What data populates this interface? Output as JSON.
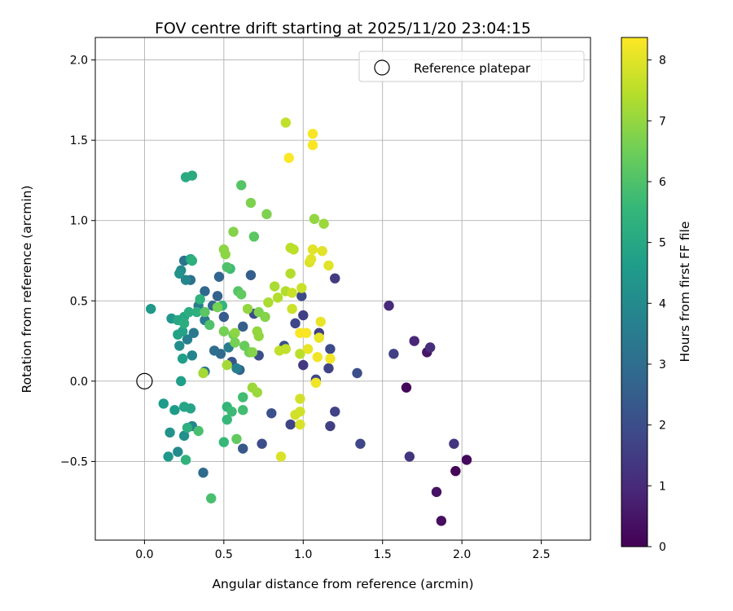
{
  "chart_data": {
    "type": "scatter",
    "title": "FOV centre drift starting at 2025/11/20 23:04:15",
    "xlabel": "Angular distance from reference (arcmin)",
    "ylabel": "Rotation from reference (arcmin)",
    "xlim": [
      -0.31,
      2.81
    ],
    "ylim": [
      -0.99,
      2.14
    ],
    "xticks": [
      0.0,
      0.5,
      1.0,
      1.5,
      2.0,
      2.5
    ],
    "xtick_labels": [
      "0.0",
      "0.5",
      "1.0",
      "1.5",
      "2.0",
      "2.5"
    ],
    "yticks": [
      -0.5,
      0.0,
      0.5,
      1.0,
      1.5,
      2.0
    ],
    "ytick_labels": [
      "−0.5",
      "0.0",
      "0.5",
      "1.0",
      "1.5",
      "2.0"
    ],
    "grid": true,
    "legend": {
      "position": "top-right",
      "entries": [
        "Reference platepar"
      ]
    },
    "reference_point": {
      "x": 0.0,
      "y": 0.0,
      "label": "Reference platepar"
    },
    "colorbar": {
      "label": "Hours from first FF file",
      "min": 0,
      "max": 8.37,
      "colormap": "viridis",
      "ticks": [
        0,
        1,
        2,
        3,
        4,
        5,
        6,
        7,
        8
      ],
      "tick_labels": [
        "0",
        "1",
        "2",
        "3",
        "4",
        "5",
        "6",
        "7",
        "8"
      ]
    },
    "colormap_stops": [
      "#440154",
      "#482878",
      "#3e4989",
      "#31688e",
      "#26828e",
      "#1f9e89",
      "#35b779",
      "#6ece58",
      "#b5de2b",
      "#fde725"
    ],
    "points": [
      {
        "x": 1.96,
        "y": -0.56,
        "h": 0.1
      },
      {
        "x": 2.03,
        "y": -0.49,
        "h": 0.2
      },
      {
        "x": 1.87,
        "y": -0.87,
        "h": 0.3
      },
      {
        "x": 1.84,
        "y": -0.69,
        "h": 0.4
      },
      {
        "x": 1.65,
        "y": -0.04,
        "h": 0.1
      },
      {
        "x": 1.78,
        "y": 0.18,
        "h": 0.5
      },
      {
        "x": 1.7,
        "y": 0.25,
        "h": 0.9
      },
      {
        "x": 1.8,
        "y": 0.21,
        "h": 1.1
      },
      {
        "x": 1.54,
        "y": 0.47,
        "h": 1.0
      },
      {
        "x": 1.95,
        "y": -0.39,
        "h": 1.3
      },
      {
        "x": 1.67,
        "y": -0.47,
        "h": 1.3
      },
      {
        "x": 1.57,
        "y": 0.17,
        "h": 1.6
      },
      {
        "x": 1.36,
        "y": -0.39,
        "h": 1.8
      },
      {
        "x": 1.34,
        "y": 0.05,
        "h": 2.0
      },
      {
        "x": 1.2,
        "y": 0.64,
        "h": 1.5
      },
      {
        "x": 1.2,
        "y": -0.19,
        "h": 1.7
      },
      {
        "x": 1.17,
        "y": -0.28,
        "h": 1.6
      },
      {
        "x": 1.17,
        "y": 0.2,
        "h": 1.9
      },
      {
        "x": 1.16,
        "y": 0.08,
        "h": 1.7
      },
      {
        "x": 1.1,
        "y": 0.3,
        "h": 1.6
      },
      {
        "x": 1.08,
        "y": 0.01,
        "h": 1.8
      },
      {
        "x": 1.0,
        "y": 0.41,
        "h": 1.6
      },
      {
        "x": 1.0,
        "y": 0.1,
        "h": 1.4
      },
      {
        "x": 0.99,
        "y": 0.53,
        "h": 1.9
      },
      {
        "x": 0.95,
        "y": 0.36,
        "h": 1.8
      },
      {
        "x": 0.92,
        "y": -0.27,
        "h": 1.7
      },
      {
        "x": 0.88,
        "y": 0.22,
        "h": 2.1
      },
      {
        "x": 0.8,
        "y": -0.2,
        "h": 2.1
      },
      {
        "x": 0.74,
        "y": -0.39,
        "h": 2.0
      },
      {
        "x": 0.72,
        "y": 0.16,
        "h": 2.0
      },
      {
        "x": 0.69,
        "y": 0.42,
        "h": 1.9
      },
      {
        "x": 0.67,
        "y": 0.66,
        "h": 2.5
      },
      {
        "x": 0.62,
        "y": 0.34,
        "h": 2.5
      },
      {
        "x": 0.62,
        "y": -0.42,
        "h": 2.3
      },
      {
        "x": 0.6,
        "y": 0.07,
        "h": 2.6
      },
      {
        "x": 0.55,
        "y": 0.12,
        "h": 2.2
      },
      {
        "x": 0.5,
        "y": 0.4,
        "h": 2.4
      },
      {
        "x": 0.47,
        "y": 0.65,
        "h": 2.7
      },
      {
        "x": 0.46,
        "y": 0.53,
        "h": 2.6
      },
      {
        "x": 0.43,
        "y": 0.47,
        "h": 2.8
      },
      {
        "x": 0.48,
        "y": 0.17,
        "h": 2.9
      },
      {
        "x": 0.44,
        "y": 0.19,
        "h": 3.0
      },
      {
        "x": 0.38,
        "y": 0.56,
        "h": 2.8
      },
      {
        "x": 0.37,
        "y": -0.57,
        "h": 2.9
      },
      {
        "x": 0.38,
        "y": 0.06,
        "h": 3.2
      },
      {
        "x": 0.29,
        "y": 0.63,
        "h": 3.1
      },
      {
        "x": 0.25,
        "y": 0.75,
        "h": 3.2
      },
      {
        "x": 0.31,
        "y": 0.3,
        "h": 3.4
      },
      {
        "x": 0.27,
        "y": 0.26,
        "h": 3.6
      },
      {
        "x": 0.38,
        "y": 0.38,
        "h": 3.4
      },
      {
        "x": 0.34,
        "y": 0.47,
        "h": 3.5
      },
      {
        "x": 0.53,
        "y": 0.21,
        "h": 3.5
      },
      {
        "x": 0.58,
        "y": 0.08,
        "h": 3.7
      },
      {
        "x": 0.3,
        "y": 0.16,
        "h": 3.8
      },
      {
        "x": 0.3,
        "y": -0.28,
        "h": 3.8
      },
      {
        "x": 0.26,
        "y": 0.63,
        "h": 3.9
      },
      {
        "x": 0.21,
        "y": -0.44,
        "h": 4.0
      },
      {
        "x": 0.23,
        "y": 0.69,
        "h": 4.0
      },
      {
        "x": 0.22,
        "y": 0.22,
        "h": 4.1
      },
      {
        "x": 0.25,
        "y": -0.34,
        "h": 4.2
      },
      {
        "x": 0.16,
        "y": -0.32,
        "h": 4.3
      },
      {
        "x": 0.22,
        "y": 0.67,
        "h": 4.3
      },
      {
        "x": 0.17,
        "y": 0.39,
        "h": 4.4
      },
      {
        "x": 0.04,
        "y": 0.45,
        "h": 4.5
      },
      {
        "x": 0.15,
        "y": -0.47,
        "h": 4.5
      },
      {
        "x": 0.12,
        "y": -0.14,
        "h": 4.6
      },
      {
        "x": 0.19,
        "y": -0.18,
        "h": 4.6
      },
      {
        "x": 0.23,
        "y": 0.0,
        "h": 4.7
      },
      {
        "x": 0.24,
        "y": 0.14,
        "h": 4.7
      },
      {
        "x": 0.21,
        "y": 0.29,
        "h": 4.8
      },
      {
        "x": 0.24,
        "y": 0.31,
        "h": 4.8
      },
      {
        "x": 0.29,
        "y": -0.17,
        "h": 4.9
      },
      {
        "x": 0.25,
        "y": -0.16,
        "h": 4.9
      },
      {
        "x": 0.29,
        "y": 0.76,
        "h": 4.9
      },
      {
        "x": 0.21,
        "y": 0.38,
        "h": 5.0
      },
      {
        "x": 0.25,
        "y": 0.4,
        "h": 5.0
      },
      {
        "x": 0.26,
        "y": 1.27,
        "h": 5.1
      },
      {
        "x": 0.3,
        "y": 1.28,
        "h": 5.1
      },
      {
        "x": 0.28,
        "y": 0.43,
        "h": 5.2
      },
      {
        "x": 0.25,
        "y": 0.36,
        "h": 5.2
      },
      {
        "x": 0.3,
        "y": 0.75,
        "h": 5.3
      },
      {
        "x": 0.33,
        "y": 0.43,
        "h": 5.3
      },
      {
        "x": 0.27,
        "y": -0.29,
        "h": 5.3
      },
      {
        "x": 0.26,
        "y": -0.49,
        "h": 5.4
      },
      {
        "x": 0.35,
        "y": 0.51,
        "h": 5.4
      },
      {
        "x": 0.49,
        "y": 0.47,
        "h": 5.5
      },
      {
        "x": 0.52,
        "y": -0.16,
        "h": 5.5
      },
      {
        "x": 0.52,
        "y": -0.24,
        "h": 5.6
      },
      {
        "x": 0.5,
        "y": -0.38,
        "h": 5.6
      },
      {
        "x": 0.54,
        "y": 0.7,
        "h": 5.7
      },
      {
        "x": 0.55,
        "y": -0.19,
        "h": 5.7
      },
      {
        "x": 0.62,
        "y": -0.1,
        "h": 5.8
      },
      {
        "x": 0.62,
        "y": -0.18,
        "h": 5.8
      },
      {
        "x": 0.34,
        "y": -0.31,
        "h": 5.9
      },
      {
        "x": 0.42,
        "y": -0.73,
        "h": 5.9
      },
      {
        "x": 0.41,
        "y": 0.35,
        "h": 6.0
      },
      {
        "x": 0.52,
        "y": 0.71,
        "h": 6.0
      },
      {
        "x": 0.59,
        "y": 0.56,
        "h": 6.1
      },
      {
        "x": 0.61,
        "y": 1.22,
        "h": 6.1
      },
      {
        "x": 0.69,
        "y": 0.9,
        "h": 6.2
      },
      {
        "x": 0.38,
        "y": 0.43,
        "h": 6.2
      },
      {
        "x": 0.58,
        "y": -0.36,
        "h": 6.3
      },
      {
        "x": 0.61,
        "y": 0.54,
        "h": 6.3
      },
      {
        "x": 0.63,
        "y": 0.22,
        "h": 6.4
      },
      {
        "x": 0.66,
        "y": 0.18,
        "h": 6.5
      },
      {
        "x": 0.56,
        "y": 0.29,
        "h": 6.5
      },
      {
        "x": 0.57,
        "y": 0.24,
        "h": 6.6
      },
      {
        "x": 0.46,
        "y": 0.46,
        "h": 6.6
      },
      {
        "x": 0.5,
        "y": 0.31,
        "h": 6.6
      },
      {
        "x": 0.67,
        "y": 1.11,
        "h": 6.7
      },
      {
        "x": 0.77,
        "y": 1.04,
        "h": 6.7
      },
      {
        "x": 0.72,
        "y": 0.43,
        "h": 6.7
      },
      {
        "x": 0.76,
        "y": 0.4,
        "h": 6.8
      },
      {
        "x": 0.68,
        "y": 0.18,
        "h": 6.8
      },
      {
        "x": 0.56,
        "y": 0.93,
        "h": 6.8
      },
      {
        "x": 0.5,
        "y": 0.82,
        "h": 6.9
      },
      {
        "x": 0.51,
        "y": 0.79,
        "h": 6.9
      },
      {
        "x": 0.57,
        "y": 0.3,
        "h": 6.9
      },
      {
        "x": 0.65,
        "y": 0.45,
        "h": 7.0
      },
      {
        "x": 0.71,
        "y": 0.31,
        "h": 7.0
      },
      {
        "x": 0.72,
        "y": 0.28,
        "h": 7.0
      },
      {
        "x": 0.68,
        "y": -0.04,
        "h": 7.1
      },
      {
        "x": 0.71,
        "y": -0.07,
        "h": 7.1
      },
      {
        "x": 0.52,
        "y": 0.1,
        "h": 7.2
      },
      {
        "x": 0.37,
        "y": 0.05,
        "h": 7.2
      },
      {
        "x": 1.07,
        "y": 1.01,
        "h": 7.0
      },
      {
        "x": 1.13,
        "y": 0.98,
        "h": 7.1
      },
      {
        "x": 0.78,
        "y": 0.49,
        "h": 7.3
      },
      {
        "x": 0.82,
        "y": 0.59,
        "h": 7.3
      },
      {
        "x": 0.84,
        "y": 0.52,
        "h": 7.4
      },
      {
        "x": 0.89,
        "y": 0.56,
        "h": 7.4
      },
      {
        "x": 0.92,
        "y": 0.67,
        "h": 7.4
      },
      {
        "x": 0.92,
        "y": 0.83,
        "h": 7.5
      },
      {
        "x": 0.94,
        "y": 0.82,
        "h": 7.5
      },
      {
        "x": 0.98,
        "y": 0.17,
        "h": 7.5
      },
      {
        "x": 0.85,
        "y": 0.19,
        "h": 7.6
      },
      {
        "x": 0.89,
        "y": 0.2,
        "h": 7.6
      },
      {
        "x": 0.89,
        "y": 1.61,
        "h": 7.6
      },
      {
        "x": 0.93,
        "y": 0.55,
        "h": 7.7
      },
      {
        "x": 0.93,
        "y": 0.45,
        "h": 7.7
      },
      {
        "x": 0.99,
        "y": 0.58,
        "h": 7.7
      },
      {
        "x": 0.98,
        "y": -0.11,
        "h": 7.8
      },
      {
        "x": 0.98,
        "y": -0.19,
        "h": 7.8
      },
      {
        "x": 0.95,
        "y": -0.21,
        "h": 7.8
      },
      {
        "x": 0.98,
        "y": -0.27,
        "h": 7.9
      },
      {
        "x": 0.86,
        "y": -0.47,
        "h": 7.9
      },
      {
        "x": 1.04,
        "y": 0.74,
        "h": 7.9
      },
      {
        "x": 1.05,
        "y": 0.76,
        "h": 8.0
      },
      {
        "x": 1.06,
        "y": 0.82,
        "h": 8.0
      },
      {
        "x": 1.12,
        "y": 0.81,
        "h": 8.0
      },
      {
        "x": 1.16,
        "y": 0.72,
        "h": 8.0
      },
      {
        "x": 1.1,
        "y": 0.27,
        "h": 8.1
      },
      {
        "x": 1.11,
        "y": 0.37,
        "h": 8.1
      },
      {
        "x": 1.03,
        "y": 0.2,
        "h": 8.1
      },
      {
        "x": 1.09,
        "y": 0.15,
        "h": 8.2
      },
      {
        "x": 1.17,
        "y": 0.14,
        "h": 8.2
      },
      {
        "x": 1.08,
        "y": -0.01,
        "h": 8.2
      },
      {
        "x": 0.98,
        "y": 0.3,
        "h": 8.3
      },
      {
        "x": 1.02,
        "y": 0.3,
        "h": 8.3
      },
      {
        "x": 1.06,
        "y": 1.54,
        "h": 8.3
      },
      {
        "x": 1.06,
        "y": 1.47,
        "h": 8.3
      },
      {
        "x": 0.91,
        "y": 1.39,
        "h": 8.35
      }
    ]
  }
}
